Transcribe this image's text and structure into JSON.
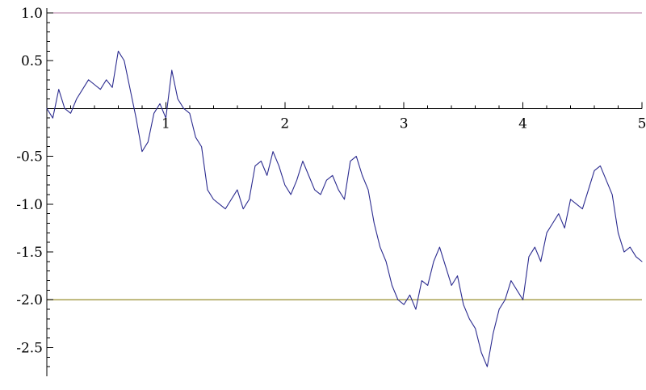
{
  "chart_data": {
    "type": "line",
    "title": "",
    "xlabel": "",
    "ylabel": "",
    "xlim": [
      0,
      5
    ],
    "ylim": [
      -2.8,
      1.05
    ],
    "x_ticks": [
      1,
      2,
      3,
      4,
      5
    ],
    "x_tick_labels": [
      "1",
      "2",
      "3",
      "4",
      "5"
    ],
    "y_ticks": [
      -2.5,
      -2.0,
      -1.5,
      -1.0,
      -0.5,
      0.5,
      1.0
    ],
    "y_tick_labels": [
      "-2.5",
      "-2.0",
      "-1.5",
      "-1.0",
      "-0.5",
      "0.5",
      "1.0"
    ],
    "grid": false,
    "reference_lines": [
      {
        "y": 1.0,
        "color": "#b07aa1"
      },
      {
        "y": -2.0,
        "color": "#a8a050"
      }
    ],
    "series": [
      {
        "color": "#2b2b8f",
        "x": [
          0,
          0.05,
          0.1,
          0.15,
          0.2,
          0.25,
          0.3,
          0.35,
          0.4,
          0.45,
          0.5,
          0.55,
          0.6,
          0.65,
          0.7,
          0.75,
          0.8,
          0.85,
          0.9,
          0.95,
          1.0,
          1.05,
          1.1,
          1.15,
          1.2,
          1.25,
          1.3,
          1.35,
          1.4,
          1.45,
          1.5,
          1.55,
          1.6,
          1.65,
          1.7,
          1.75,
          1.8,
          1.85,
          1.9,
          1.95,
          2.0,
          2.05,
          2.1,
          2.15,
          2.2,
          2.25,
          2.3,
          2.35,
          2.4,
          2.45,
          2.5,
          2.55,
          2.6,
          2.65,
          2.7,
          2.75,
          2.8,
          2.85,
          2.9,
          2.95,
          3.0,
          3.05,
          3.1,
          3.15,
          3.2,
          3.25,
          3.3,
          3.35,
          3.4,
          3.45,
          3.5,
          3.55,
          3.6,
          3.65,
          3.7,
          3.75,
          3.8,
          3.85,
          3.9,
          3.95,
          4.0,
          4.05,
          4.1,
          4.15,
          4.2,
          4.25,
          4.3,
          4.35,
          4.4,
          4.45,
          4.5,
          4.55,
          4.6,
          4.65,
          4.7,
          4.75,
          4.8,
          4.85,
          4.9,
          4.95,
          5.0
        ],
        "y": [
          0,
          -0.1,
          0.2,
          0.0,
          -0.05,
          0.1,
          0.2,
          0.3,
          0.25,
          0.2,
          0.3,
          0.22,
          0.6,
          0.5,
          0.2,
          -0.1,
          -0.45,
          -0.35,
          -0.05,
          0.05,
          -0.1,
          0.4,
          0.1,
          0.0,
          -0.05,
          -0.3,
          -0.4,
          -0.85,
          -0.95,
          -1.0,
          -1.05,
          -0.95,
          -0.85,
          -1.05,
          -0.95,
          -0.6,
          -0.55,
          -0.7,
          -0.45,
          -0.6,
          -0.8,
          -0.9,
          -0.75,
          -0.55,
          -0.7,
          -0.85,
          -0.9,
          -0.75,
          -0.7,
          -0.85,
          -0.95,
          -0.55,
          -0.5,
          -0.7,
          -0.85,
          -1.2,
          -1.45,
          -1.6,
          -1.85,
          -2.0,
          -2.05,
          -1.95,
          -2.1,
          -1.8,
          -1.85,
          -1.6,
          -1.45,
          -1.65,
          -1.85,
          -1.75,
          -2.05,
          -2.2,
          -2.3,
          -2.55,
          -2.7,
          -2.35,
          -2.1,
          -2.0,
          -1.8,
          -1.9,
          -2.0,
          -1.55,
          -1.45,
          -1.6,
          -1.3,
          -1.2,
          -1.1,
          -1.25,
          -0.95,
          -1.0,
          -1.05,
          -0.85,
          -0.65,
          -0.6,
          -0.75,
          -0.9,
          -1.3,
          -1.5,
          -1.45,
          -1.55,
          -1.6
        ]
      }
    ]
  }
}
